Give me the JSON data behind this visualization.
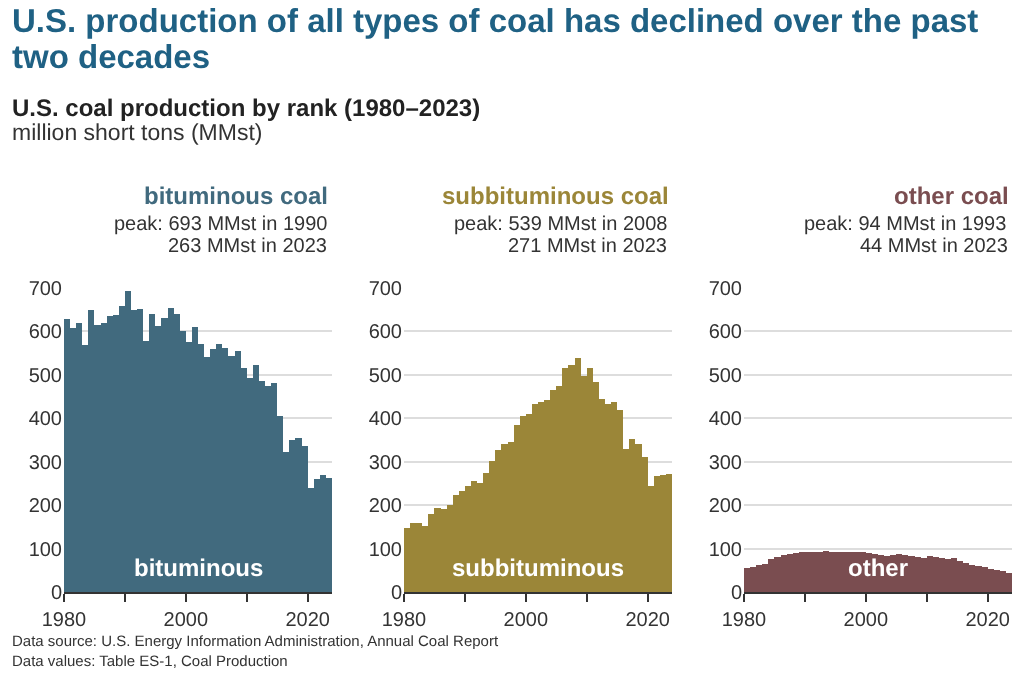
{
  "chart_data": [
    {
      "type": "other",
      "title": "U.S. production of all types of coal has declined over the past two decades",
      "subtitle": "U.S. coal production by rank (1980–2023)",
      "annotations": [
        "million short tons (MMst)",
        "Data source: U.S. Energy Information Administration, Annual Coal Report",
        "Data values: Table ES-1, Coal Production"
      ]
    },
    {
      "type": "bar",
      "title": "bituminous coal",
      "annotations": [
        "peak: 693 MMst in 1990",
        "263 MMst in 2023"
      ],
      "x": [
        1980,
        1981,
        1982,
        1983,
        1984,
        1985,
        1986,
        1987,
        1988,
        1989,
        1990,
        1991,
        1992,
        1993,
        1994,
        1995,
        1996,
        1997,
        1998,
        1999,
        2000,
        2001,
        2002,
        2003,
        2004,
        2005,
        2006,
        2007,
        2008,
        2009,
        2010,
        2011,
        2012,
        2013,
        2014,
        2015,
        2016,
        2017,
        2018,
        2019,
        2020,
        2021,
        2022,
        2023
      ],
      "series": [
        {
          "name": "bituminous",
          "color": "#416a7e",
          "values": [
            628,
            608,
            620,
            568,
            650,
            614,
            620,
            636,
            638,
            659,
            693,
            650,
            651,
            577,
            640,
            613,
            630,
            654,
            640,
            601,
            575,
            611,
            572,
            541,
            560,
            571,
            561,
            543,
            556,
            515,
            493,
            523,
            486,
            475,
            481,
            405,
            323,
            350,
            355,
            336,
            240,
            261,
            270,
            263
          ]
        }
      ],
      "xlim": [
        1980,
        2024
      ],
      "xticks": [
        1980,
        2000,
        2020
      ],
      "ylim": [
        0,
        700
      ],
      "yticks": [
        0,
        100,
        200,
        300,
        400,
        500,
        600,
        700
      ],
      "grid": "y",
      "legend": false
    },
    {
      "type": "bar",
      "title": "subbituminous coal",
      "annotations": [
        "peak: 539 MMst in 2008",
        "271 MMst in 2023"
      ],
      "x": [
        1980,
        1981,
        1982,
        1983,
        1984,
        1985,
        1986,
        1987,
        1988,
        1989,
        1990,
        1991,
        1992,
        1993,
        1994,
        1995,
        1996,
        1997,
        1998,
        1999,
        2000,
        2001,
        2002,
        2003,
        2004,
        2005,
        2006,
        2007,
        2008,
        2009,
        2010,
        2011,
        2012,
        2013,
        2014,
        2015,
        2016,
        2017,
        2018,
        2019,
        2020,
        2021,
        2022,
        2023
      ],
      "series": [
        {
          "name": "subbituminous",
          "color": "#9b8638",
          "values": [
            147,
            160,
            160,
            152,
            179,
            193,
            190,
            200,
            223,
            232,
            244,
            256,
            252,
            275,
            301,
            328,
            340,
            346,
            385,
            406,
            409,
            434,
            438,
            442,
            465,
            475,
            516,
            523,
            539,
            497,
            515,
            483,
            445,
            434,
            438,
            418,
            330,
            353,
            340,
            310,
            245,
            268,
            270,
            271
          ]
        }
      ],
      "xlim": [
        1980,
        2024
      ],
      "xticks": [
        1980,
        2000,
        2020
      ],
      "ylim": [
        0,
        700
      ],
      "yticks": [
        0,
        100,
        200,
        300,
        400,
        500,
        600,
        700
      ],
      "grid": "y",
      "legend": false
    },
    {
      "type": "bar",
      "title": "other coal",
      "annotations": [
        "peak: 94 MMst in 1993",
        "44 MMst in 2023"
      ],
      "x": [
        1980,
        1981,
        1982,
        1983,
        1984,
        1985,
        1986,
        1987,
        1988,
        1989,
        1990,
        1991,
        1992,
        1993,
        1994,
        1995,
        1996,
        1997,
        1998,
        1999,
        2000,
        2001,
        2002,
        2003,
        2004,
        2005,
        2006,
        2007,
        2008,
        2009,
        2010,
        2011,
        2012,
        2013,
        2014,
        2015,
        2016,
        2017,
        2018,
        2019,
        2020,
        2021,
        2022,
        2023
      ],
      "series": [
        {
          "name": "other",
          "color": "#7a4d50",
          "values": [
            55,
            58,
            62,
            65,
            75,
            81,
            85,
            88,
            90,
            92,
            93,
            92,
            93,
            94,
            93,
            92,
            92,
            93,
            93,
            91,
            90,
            88,
            85,
            84,
            86,
            87,
            86,
            82,
            81,
            79,
            82,
            80,
            79,
            76,
            78,
            72,
            66,
            63,
            60,
            57,
            52,
            50,
            48,
            44
          ]
        }
      ],
      "xlim": [
        1980,
        2024
      ],
      "xticks": [
        1980,
        2000,
        2020
      ],
      "ylim": [
        0,
        700
      ],
      "yticks": [
        0,
        100,
        200,
        300,
        400,
        500,
        600,
        700
      ],
      "grid": "y",
      "legend": false
    }
  ]
}
